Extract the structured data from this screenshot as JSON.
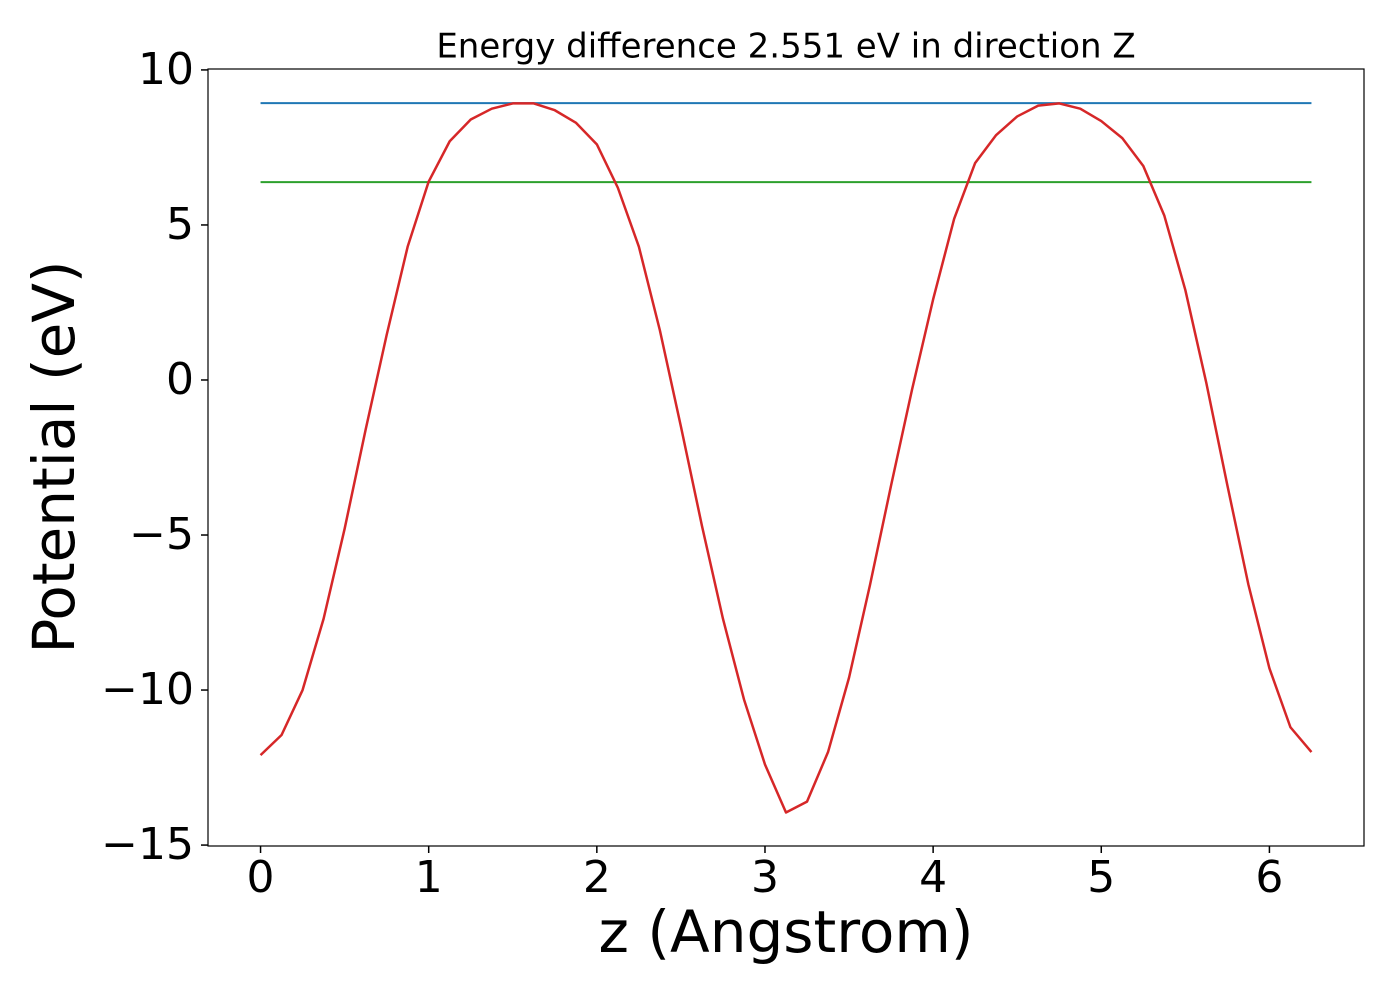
{
  "chart_data": {
    "type": "line",
    "title": "Energy difference 2.551 eV in direction Z",
    "xlabel": "z (Angstrom)",
    "ylabel": "Potential (eV)",
    "series": [
      {
        "color": "#d62728",
        "x": [
          0,
          0.125,
          0.25,
          0.375,
          0.5,
          0.625,
          0.75,
          0.875,
          1.0,
          1.125,
          1.25,
          1.375,
          1.5,
          1.625,
          1.75,
          1.875,
          2.0,
          2.125,
          2.25,
          2.375,
          2.5,
          2.625,
          2.75,
          2.875,
          3.0,
          3.125,
          3.25,
          3.375,
          3.5,
          3.625,
          3.75,
          3.875,
          4.0,
          4.125,
          4.25,
          4.375,
          4.5,
          4.625,
          4.75,
          4.875,
          5.0,
          5.125,
          5.25,
          5.375,
          5.5,
          5.625,
          5.75,
          5.875,
          6.0,
          6.125,
          6.25
        ],
        "values": [
          -12.1,
          -11.45,
          -10.0,
          -7.7,
          -4.8,
          -1.6,
          1.45,
          4.3,
          6.4,
          7.7,
          8.4,
          8.75,
          8.92,
          8.92,
          8.7,
          8.3,
          7.6,
          6.2,
          4.3,
          1.6,
          -1.5,
          -4.7,
          -7.7,
          -10.3,
          -12.4,
          -13.95,
          -13.6,
          -12.0,
          -9.6,
          -6.6,
          -3.4,
          -0.3,
          2.6,
          5.2,
          7.0,
          7.9,
          8.5,
          8.85,
          8.92,
          8.75,
          8.35,
          7.8,
          6.9,
          5.3,
          2.9,
          -0.1,
          -3.4,
          -6.6,
          -9.3,
          -11.2,
          -12.0
        ]
      },
      {
        "color": "#1f77b4",
        "x": [
          0,
          6.25
        ],
        "values": [
          8.93,
          8.93
        ]
      },
      {
        "color": "#2ca02c",
        "x": [
          0,
          6.25
        ],
        "values": [
          6.38,
          6.38
        ]
      }
    ],
    "xlim": [
      -0.3125,
      6.5625
    ],
    "ylim": [
      -15.03,
      10.03
    ],
    "xticks": [
      0,
      1,
      2,
      3,
      4,
      5,
      6
    ],
    "yticks": [
      {
        "value": -15,
        "label": "−15"
      },
      {
        "value": -10,
        "label": "−10"
      },
      {
        "value": -5,
        "label": "−5"
      },
      0,
      5,
      10
    ]
  }
}
